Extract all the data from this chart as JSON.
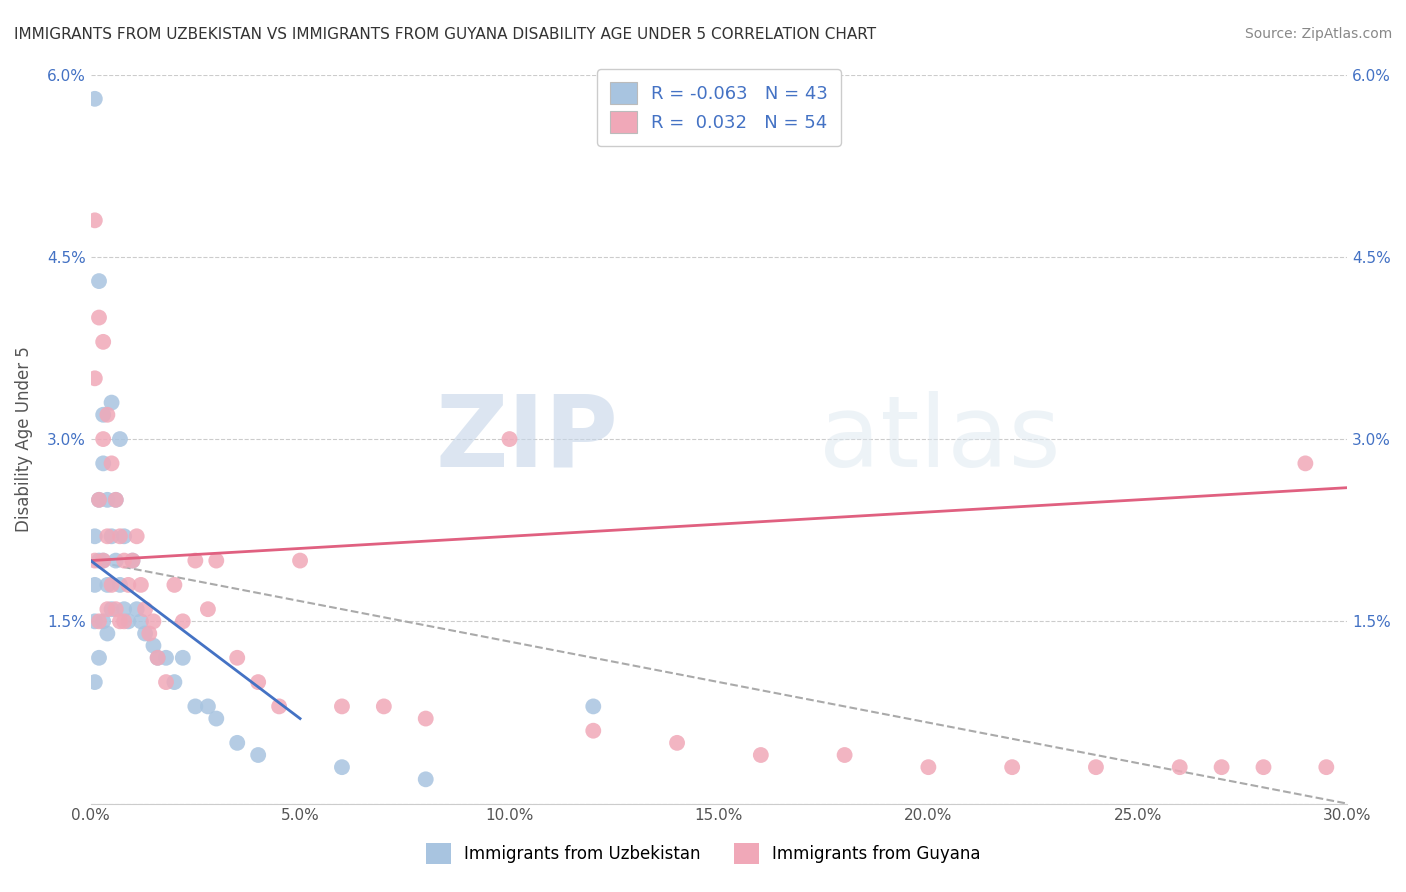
{
  "title": "IMMIGRANTS FROM UZBEKISTAN VS IMMIGRANTS FROM GUYANA DISABILITY AGE UNDER 5 CORRELATION CHART",
  "source": "Source: ZipAtlas.com",
  "ylabel": "Disability Age Under 5",
  "xlim": [
    0,
    0.3
  ],
  "ylim": [
    0,
    0.06
  ],
  "yticks": [
    0,
    0.015,
    0.03,
    0.045,
    0.06
  ],
  "ytick_labels": [
    "",
    "1.5%",
    "3.0%",
    "4.5%",
    "6.0%"
  ],
  "xticks": [
    0,
    0.05,
    0.1,
    0.15,
    0.2,
    0.25,
    0.3
  ],
  "xtick_labels": [
    "0.0%",
    "5.0%",
    "10.0%",
    "15.0%",
    "20.0%",
    "25.0%",
    "30.0%"
  ],
  "uzbekistan_color": "#a8c4e0",
  "guyana_color": "#f0a8b8",
  "uzbekistan_line_color": "#4472c4",
  "guyana_line_color": "#e06080",
  "dashed_line_color": "#aaaaaa",
  "R_uzbekistan": -0.063,
  "N_uzbekistan": 43,
  "R_guyana": 0.032,
  "N_guyana": 54,
  "legend_label_uzbekistan": "Immigrants from Uzbekistan",
  "legend_label_guyana": "Immigrants from Guyana",
  "watermark_zip": "ZIP",
  "watermark_atlas": "atlas",
  "uzbekistan_x": [
    0.001,
    0.001,
    0.001,
    0.001,
    0.001,
    0.002,
    0.002,
    0.002,
    0.002,
    0.003,
    0.003,
    0.003,
    0.003,
    0.004,
    0.004,
    0.004,
    0.005,
    0.005,
    0.005,
    0.006,
    0.006,
    0.007,
    0.007,
    0.008,
    0.008,
    0.009,
    0.01,
    0.011,
    0.012,
    0.013,
    0.015,
    0.016,
    0.018,
    0.02,
    0.022,
    0.025,
    0.028,
    0.03,
    0.035,
    0.04,
    0.06,
    0.08,
    0.12
  ],
  "uzbekistan_y": [
    0.058,
    0.022,
    0.018,
    0.015,
    0.01,
    0.043,
    0.025,
    0.02,
    0.012,
    0.032,
    0.028,
    0.02,
    0.015,
    0.025,
    0.018,
    0.014,
    0.033,
    0.022,
    0.016,
    0.025,
    0.02,
    0.03,
    0.018,
    0.022,
    0.016,
    0.015,
    0.02,
    0.016,
    0.015,
    0.014,
    0.013,
    0.012,
    0.012,
    0.01,
    0.012,
    0.008,
    0.008,
    0.007,
    0.005,
    0.004,
    0.003,
    0.002,
    0.008
  ],
  "guyana_x": [
    0.001,
    0.001,
    0.001,
    0.002,
    0.002,
    0.002,
    0.003,
    0.003,
    0.003,
    0.004,
    0.004,
    0.004,
    0.005,
    0.005,
    0.006,
    0.006,
    0.007,
    0.007,
    0.008,
    0.008,
    0.009,
    0.01,
    0.011,
    0.012,
    0.013,
    0.014,
    0.015,
    0.016,
    0.018,
    0.02,
    0.022,
    0.025,
    0.028,
    0.03,
    0.035,
    0.04,
    0.045,
    0.05,
    0.06,
    0.07,
    0.08,
    0.1,
    0.12,
    0.14,
    0.16,
    0.18,
    0.2,
    0.22,
    0.24,
    0.26,
    0.27,
    0.28,
    0.29,
    0.295
  ],
  "guyana_y": [
    0.048,
    0.035,
    0.02,
    0.04,
    0.025,
    0.015,
    0.038,
    0.03,
    0.02,
    0.032,
    0.022,
    0.016,
    0.028,
    0.018,
    0.025,
    0.016,
    0.022,
    0.015,
    0.02,
    0.015,
    0.018,
    0.02,
    0.022,
    0.018,
    0.016,
    0.014,
    0.015,
    0.012,
    0.01,
    0.018,
    0.015,
    0.02,
    0.016,
    0.02,
    0.012,
    0.01,
    0.008,
    0.02,
    0.008,
    0.008,
    0.007,
    0.03,
    0.006,
    0.005,
    0.004,
    0.004,
    0.003,
    0.003,
    0.003,
    0.003,
    0.003,
    0.003,
    0.028,
    0.003
  ],
  "uz_trend_x0": 0.0,
  "uz_trend_y0": 0.02,
  "uz_trend_x1": 0.05,
  "uz_trend_y1": 0.007,
  "gy_trend_x0": 0.0,
  "gy_trend_y0": 0.02,
  "gy_trend_x1": 0.3,
  "gy_trend_y1": 0.026,
  "dash_trend_x0": 0.0,
  "dash_trend_y0": 0.02,
  "dash_trend_x1": 0.3,
  "dash_trend_y1": 0.0
}
